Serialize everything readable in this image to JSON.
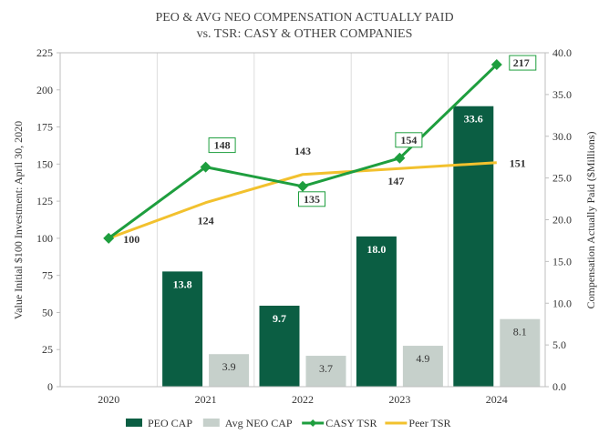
{
  "chart_data": {
    "type": "bar+line",
    "title_line1": "PEO & AVG NEO COMPENSATION ACTUALLY PAID",
    "title_line2": "vs. TSR: CASY & OTHER COMPANIES",
    "categories": [
      "2020",
      "2021",
      "2022",
      "2023",
      "2024"
    ],
    "y_left": {
      "label": "Value Initial $100 Investment: April 30, 2020",
      "range": [
        0,
        225
      ],
      "ticks": [
        "0",
        "25",
        "50",
        "75",
        "100",
        "125",
        "150",
        "175",
        "200",
        "225"
      ]
    },
    "y_right": {
      "label": "Compensation Actually Paid ($Millions)",
      "range": [
        0,
        40
      ],
      "ticks": [
        "0.0",
        "5.0",
        "10.0",
        "15.0",
        "20.0",
        "25.0",
        "30.0",
        "35.0",
        "40.0"
      ]
    },
    "series": [
      {
        "name": "PEO CAP",
        "type": "bar",
        "axis": "right",
        "color": "#0b5e43",
        "values": [
          null,
          13.8,
          9.7,
          18.0,
          33.6
        ],
        "labels": [
          "",
          "13.8",
          "9.7",
          "18.0",
          "33.6"
        ]
      },
      {
        "name": "Avg NEO CAP",
        "type": "bar",
        "axis": "right",
        "color": "#c6d0cb",
        "values": [
          null,
          3.9,
          3.7,
          4.9,
          8.1
        ],
        "labels": [
          "",
          "3.9",
          "3.7",
          "4.9",
          "8.1"
        ]
      },
      {
        "name": "CASY TSR",
        "type": "line",
        "axis": "left",
        "color": "#1e9e3e",
        "values": [
          100,
          148,
          135,
          154,
          217
        ],
        "labels": [
          "100",
          "148",
          "135",
          "154",
          "217"
        ]
      },
      {
        "name": "Peer TSR",
        "type": "line",
        "axis": "left",
        "color": "#f2c12e",
        "values": [
          100,
          124,
          143,
          147,
          151
        ],
        "labels": [
          "",
          "124",
          "143",
          "147",
          "151"
        ]
      }
    ],
    "legend_position": "bottom",
    "grid": "vertical"
  }
}
